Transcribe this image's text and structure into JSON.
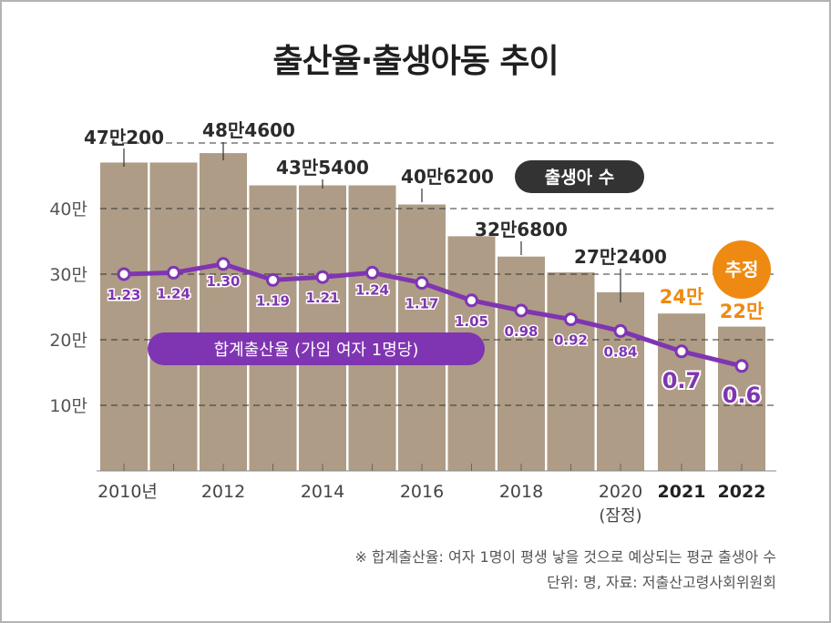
{
  "title": "출산율·출생아동 추이",
  "chart_data": {
    "type": "bar+line",
    "title": "출산율·출생아동 추이",
    "categories": [
      "2010",
      "2011",
      "2012",
      "2013",
      "2014",
      "2015",
      "2016",
      "2017",
      "2018",
      "2019",
      "2020",
      "2021",
      "2022"
    ],
    "series": [
      {
        "name": "출생아 수",
        "type": "bar",
        "values": [
          470200,
          470200,
          484600,
          435400,
          435400,
          435400,
          406200,
          357800,
          326800,
          302700,
          272400,
          240000,
          220000
        ]
      },
      {
        "name": "합계출산율 (가임 여자 1명당)",
        "type": "line",
        "values": [
          1.23,
          1.24,
          1.3,
          1.19,
          1.21,
          1.24,
          1.17,
          1.05,
          0.98,
          0.92,
          0.84,
          0.7,
          0.6
        ]
      }
    ],
    "bar_labels": [
      {
        "index": 0,
        "text": "47만200"
      },
      {
        "index": 2,
        "text": "48만4600"
      },
      {
        "index": 4,
        "text": "43만5400"
      },
      {
        "index": 6,
        "text": "40만6200"
      },
      {
        "index": 8,
        "text": "32만6800"
      },
      {
        "index": 10,
        "text": "27만2400"
      },
      {
        "index": 11,
        "text": "24만",
        "estimate": true
      },
      {
        "index": 12,
        "text": "22만",
        "estimate": true
      }
    ],
    "line_labels": [
      "1.23",
      "1.24",
      "1.30",
      "1.19",
      "1.21",
      "1.24",
      "1.17",
      "1.05",
      "0.98",
      "0.92",
      "0.84",
      "0.7",
      "0.6"
    ],
    "y_ticks": [
      {
        "value": 100000,
        "label": "10만"
      },
      {
        "value": 200000,
        "label": "20만"
      },
      {
        "value": 300000,
        "label": "30만"
      },
      {
        "value": 400000,
        "label": "40만"
      }
    ],
    "ylim": [
      0,
      500000
    ],
    "x_ticks": [
      {
        "index": 0,
        "label": "2010년"
      },
      {
        "index": 2,
        "label": "2012"
      },
      {
        "index": 4,
        "label": "2014"
      },
      {
        "index": 6,
        "label": "2016"
      },
      {
        "index": 8,
        "label": "2018"
      },
      {
        "index": 10,
        "label": "2020",
        "sublabel": "(잠정)"
      },
      {
        "index": 11,
        "label": "2021",
        "bold": true
      },
      {
        "index": 12,
        "label": "2022",
        "bold": true
      }
    ],
    "legend_bar": "출생아 수",
    "legend_line": "합계출산율 (가임 여자 1명당)",
    "estimate_badge": "추정",
    "grid": true,
    "colors": {
      "bar": "#ae9c86",
      "line": "#7f35b2",
      "estimate": "#ee8a12",
      "legend_dark": "#333333"
    }
  },
  "notes": {
    "definition": "※ 합계출산율: 여자 1명이 평생 낳을 것으로 예상되는 평균 출생아 수",
    "source": "단위: 명, 자료: 저출산고령사회위원회"
  }
}
